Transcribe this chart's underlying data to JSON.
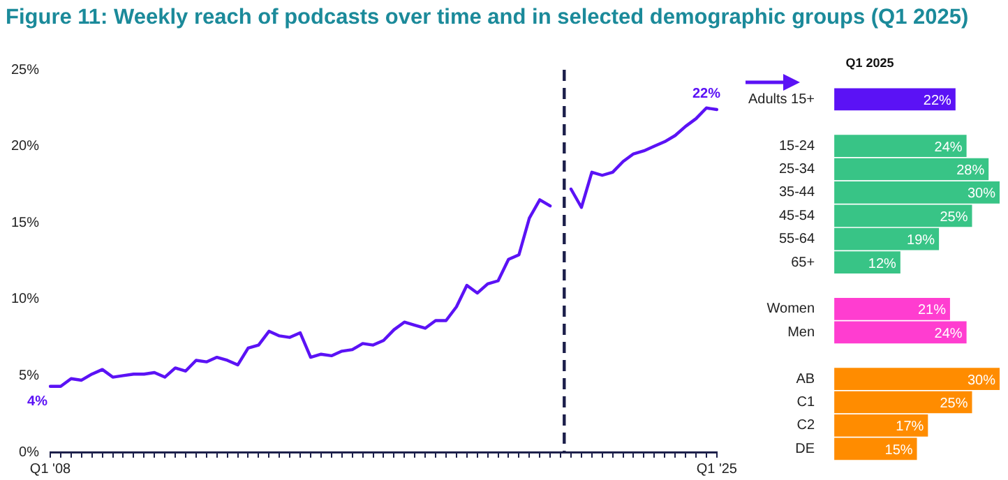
{
  "chart_data": [
    {
      "type": "line",
      "title": "Figure 11: Weekly reach of podcasts over time and in selected demographic groups (Q1 2025)",
      "categories": [
        "Q1 '08",
        null,
        null,
        null,
        null,
        null,
        null,
        null,
        null,
        null,
        null,
        null,
        null,
        null,
        null,
        null,
        null,
        null,
        null,
        null,
        null,
        null,
        null,
        null,
        null,
        null,
        null,
        null,
        null,
        null,
        null,
        null,
        null,
        null,
        null,
        null,
        null,
        null,
        null,
        null,
        null,
        null,
        null,
        null,
        null,
        null,
        null,
        null,
        null,
        null,
        null,
        null,
        null,
        null,
        null,
        null,
        null,
        null,
        null,
        null,
        null,
        null,
        null,
        null,
        "Q1 '25"
      ],
      "series": [
        {
          "color": "#5b12f5",
          "values": [
            4.3,
            4.3,
            4.8,
            4.7,
            5.1,
            5.4,
            4.9,
            5.0,
            5.1,
            5.1,
            5.2,
            4.9,
            5.5,
            5.3,
            6.0,
            5.9,
            6.2,
            6.0,
            5.7,
            6.8,
            7.0,
            7.9,
            7.6,
            7.5,
            7.8,
            6.2,
            6.4,
            6.3,
            6.6,
            6.7,
            7.1,
            7.0,
            7.3,
            8.0,
            8.5,
            8.3,
            8.1,
            8.6,
            8.6,
            9.5,
            10.9,
            10.4,
            11.0,
            11.2,
            12.6,
            12.9,
            15.3,
            16.5,
            16.1,
            null,
            17.2,
            16.0,
            18.3,
            18.1,
            18.3,
            19.0,
            19.5,
            19.7,
            20.0,
            20.3,
            20.7,
            21.3,
            21.8,
            22.5,
            22.4
          ],
          "value_labels": [
            "4%",
            null,
            null,
            null,
            null,
            null,
            null,
            null,
            null,
            null,
            null,
            null,
            null,
            null,
            null,
            null,
            null,
            null,
            null,
            null,
            null,
            null,
            null,
            null,
            null,
            null,
            null,
            null,
            null,
            null,
            null,
            null,
            null,
            null,
            null,
            null,
            null,
            null,
            null,
            null,
            null,
            null,
            null,
            null,
            null,
            null,
            null,
            null,
            null,
            null,
            null,
            null,
            null,
            null,
            null,
            null,
            null,
            null,
            null,
            null,
            null,
            null,
            null,
            "22%",
            null
          ]
        }
      ],
      "ylim": [
        0,
        25
      ],
      "yticks": [
        {
          "value": 0,
          "label": "0%"
        },
        {
          "value": 5,
          "label": "5%"
        },
        {
          "value": 10,
          "label": "10%"
        },
        {
          "value": 15,
          "label": "15%"
        },
        {
          "value": 20,
          "label": "20%"
        },
        {
          "value": 25,
          "label": "25%"
        }
      ],
      "grid": false,
      "legend": false,
      "marker": "none",
      "line_style": "solid"
    },
    {
      "type": "bar",
      "orientation": "horizontal",
      "title": "Q1 2025",
      "categories": [
        "Adults 15+",
        null,
        "15-24",
        "25-34",
        "35-44",
        "45-54",
        "55-64",
        "65+",
        null,
        "Women",
        "Men",
        null,
        "AB",
        "C1",
        "C2",
        "DE"
      ],
      "values": [
        22,
        null,
        24,
        28,
        30,
        25,
        19,
        12,
        null,
        21,
        24,
        null,
        30,
        25,
        17,
        15
      ],
      "value_labels": [
        "22%",
        null,
        "24%",
        "28%",
        "30%",
        "25%",
        "19%",
        "12%",
        null,
        "21%",
        "24%",
        null,
        "30%",
        "25%",
        "17%",
        "15%"
      ],
      "colors": [
        "#5b12f5",
        null,
        "#38c486",
        "#38c486",
        "#38c486",
        "#38c486",
        "#38c486",
        "#38c486",
        null,
        "#ff3dd0",
        "#ff3dd0",
        null,
        "#ff8c00",
        "#ff8c00",
        "#ff8c00",
        "#ff8c00"
      ],
      "tick_labels": "y",
      "grid": false,
      "legend": false
    }
  ]
}
